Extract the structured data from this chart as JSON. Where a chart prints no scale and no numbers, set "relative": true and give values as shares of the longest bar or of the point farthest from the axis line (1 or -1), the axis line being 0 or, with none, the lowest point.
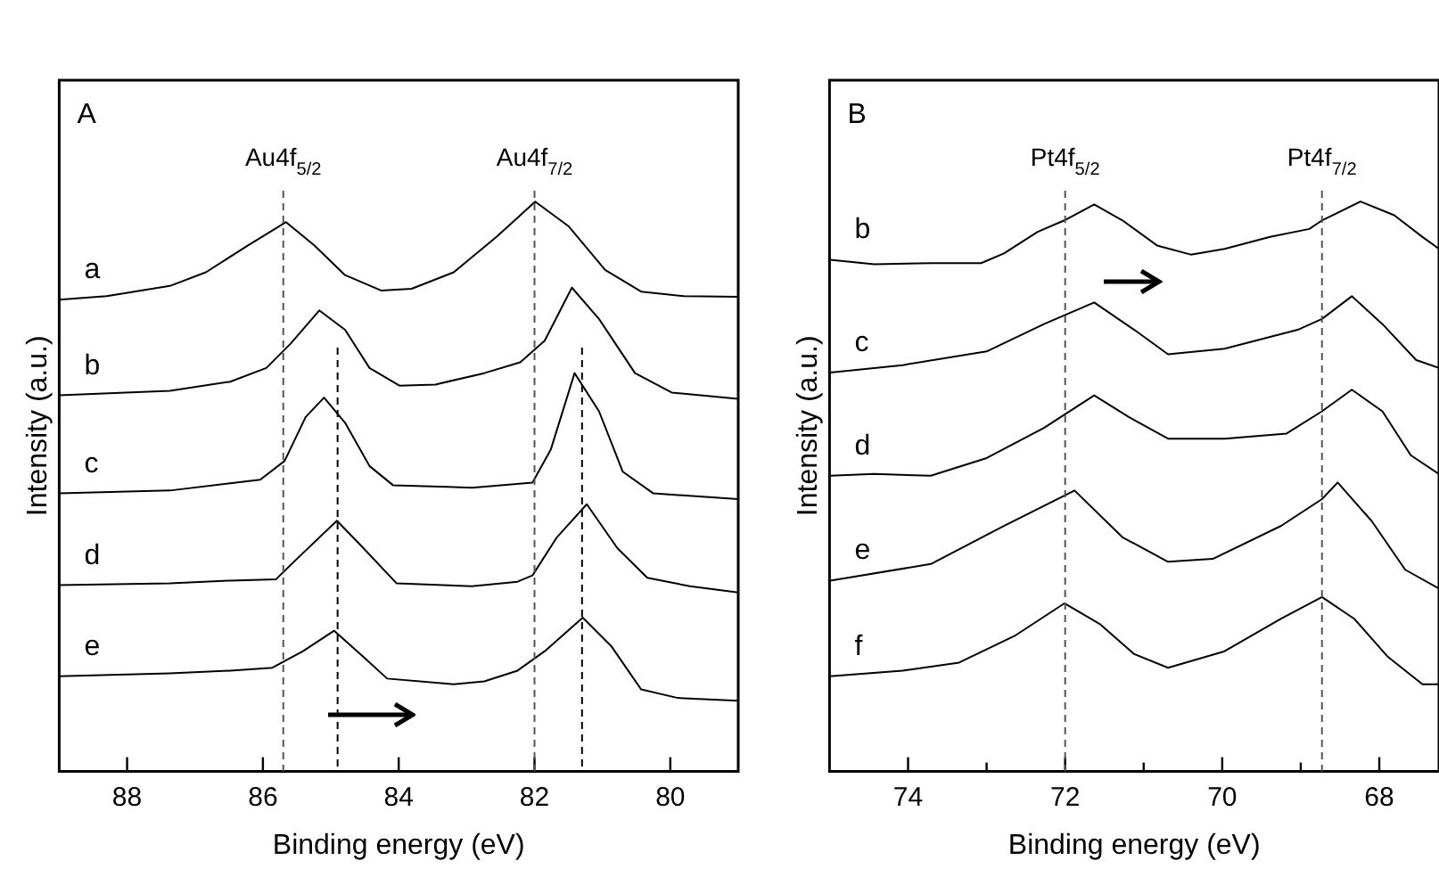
{
  "chart_data": [
    {
      "type": "line",
      "relative": true,
      "xlabel": "Binding energy (eV)",
      "ylabel": "Intensity (a.u.)",
      "xlim": [
        89,
        79
      ],
      "xticks": [
        88,
        86,
        84,
        82,
        80
      ],
      "legend": false,
      "grid": false,
      "marker": "none",
      "line_style": "solid",
      "annotations": [
        "A"
      ],
      "ref_lines": [
        {
          "axis": "x",
          "value": 85.7,
          "label": "Au4f$_{5/2}$",
          "line_style": "dashed",
          "color": "#555555"
        },
        {
          "axis": "x",
          "value": 84.9,
          "label": null,
          "line_style": "dashed",
          "color": "#000000"
        },
        {
          "axis": "x",
          "value": 82.0,
          "label": "Au4f$_{7/2}$",
          "line_style": "dashed",
          "color": "#555555"
        },
        {
          "axis": "x",
          "value": 81.3,
          "label": null,
          "line_style": "dashed",
          "color": "#000000"
        }
      ],
      "series": [
        {
          "name": "a",
          "color": "#000000",
          "x": [
            89,
            88.3,
            87.37,
            86.84,
            86.22,
            85.66,
            85.24,
            84.79,
            84.26,
            83.81,
            83.19,
            82.56,
            81.99,
            81.5,
            80.96,
            80.43,
            79.8,
            79.0
          ],
          "values": [
            0.828,
            0.834,
            0.852,
            0.876,
            0.923,
            0.964,
            0.923,
            0.871,
            0.844,
            0.847,
            0.876,
            0.938,
            1,
            0.957,
            0.88,
            0.842,
            0.834,
            0.833
          ]
        },
        {
          "name": "b",
          "color": "#000000",
          "x": [
            89,
            87.37,
            86.48,
            85.95,
            85.59,
            85.17,
            84.79,
            84.43,
            83.99,
            83.46,
            82.74,
            82.21,
            81.85,
            81.45,
            81.05,
            80.52,
            79.98,
            79.0
          ],
          "values": [
            0.66,
            0.668,
            0.684,
            0.708,
            0.751,
            0.809,
            0.775,
            0.708,
            0.677,
            0.679,
            0.699,
            0.718,
            0.756,
            0.849,
            0.794,
            0.699,
            0.665,
            0.654
          ]
        },
        {
          "name": "c",
          "color": "#000000",
          "x": [
            89,
            87.37,
            86.04,
            85.68,
            85.37,
            85.1,
            84.79,
            84.43,
            84.08,
            82.92,
            82.03,
            81.76,
            81.41,
            81.05,
            80.7,
            80.25,
            79.0
          ],
          "values": [
            0.488,
            0.493,
            0.512,
            0.545,
            0.622,
            0.656,
            0.612,
            0.536,
            0.502,
            0.498,
            0.507,
            0.565,
            0.699,
            0.632,
            0.526,
            0.488,
            0.478
          ]
        },
        {
          "name": "d",
          "color": "#000000",
          "x": [
            89,
            87.37,
            86.48,
            85.81,
            85.5,
            84.91,
            84.52,
            84.03,
            82.92,
            82.25,
            82.03,
            81.67,
            81.23,
            80.78,
            80.34,
            79.71,
            79.0
          ],
          "values": [
            0.327,
            0.33,
            0.335,
            0.337,
            0.373,
            0.44,
            0.392,
            0.33,
            0.325,
            0.333,
            0.344,
            0.411,
            0.469,
            0.392,
            0.34,
            0.325,
            0.314
          ]
        },
        {
          "name": "e",
          "color": "#000000",
          "x": [
            89,
            87.37,
            86.48,
            85.86,
            85.41,
            84.95,
            84.52,
            84.17,
            83.19,
            82.74,
            82.25,
            81.85,
            81.29,
            80.87,
            80.43,
            79.89,
            79.0
          ],
          "values": [
            0.167,
            0.172,
            0.177,
            0.182,
            0.211,
            0.247,
            0.201,
            0.163,
            0.153,
            0.158,
            0.177,
            0.211,
            0.27,
            0.22,
            0.144,
            0.129,
            0.124
          ]
        }
      ]
    },
    {
      "type": "line",
      "relative": true,
      "xlabel": "Binding energy (eV)",
      "ylabel": "Intensity (a.u.)",
      "xlim": [
        75,
        67.24
      ],
      "xticks": [
        74,
        {
          "value": 73,
          "label": null
        },
        72,
        {
          "value": 71,
          "label": null
        },
        70,
        {
          "value": 69,
          "label": null
        },
        68
      ],
      "legend": false,
      "grid": false,
      "marker": "none",
      "line_style": "solid",
      "annotations": [
        "B"
      ],
      "ref_lines": [
        {
          "axis": "x",
          "value": 72.0,
          "label": "Pt4f$_{5/2}$",
          "line_style": "dashed",
          "color": "#555555"
        },
        {
          "axis": "x",
          "value": 68.73,
          "label": "Pt4f$_{7/2}$",
          "line_style": "dashed",
          "color": "#555555"
        }
      ],
      "series": [
        {
          "name": "b",
          "color": "#000000",
          "x": [
            74.99,
            74.43,
            73.71,
            73.07,
            72.78,
            72.35,
            72.01,
            71.63,
            71.27,
            70.83,
            70.4,
            69.97,
            69.39,
            68.89,
            68.73,
            68.24,
            67.81,
            67.45,
            67.24
          ],
          "values": [
            0.898,
            0.89,
            0.892,
            0.892,
            0.909,
            0.947,
            0.967,
            0.995,
            0.967,
            0.923,
            0.907,
            0.917,
            0.938,
            0.952,
            0.967,
            1,
            0.976,
            0.938,
            0.917
          ]
        },
        {
          "name": "c",
          "color": "#000000",
          "x": [
            74.99,
            74.07,
            73.0,
            72.27,
            71.63,
            71.12,
            70.69,
            69.97,
            69.04,
            68.73,
            68.35,
            67.96,
            67.53,
            67.24
          ],
          "values": [
            0.7,
            0.713,
            0.737,
            0.785,
            0.823,
            0.775,
            0.732,
            0.742,
            0.775,
            0.794,
            0.834,
            0.785,
            0.722,
            0.708
          ]
        },
        {
          "name": "d",
          "color": "#000000",
          "x": [
            74.99,
            74.43,
            73.71,
            73.0,
            72.27,
            71.63,
            71.19,
            70.69,
            69.97,
            69.18,
            68.73,
            68.35,
            67.96,
            67.6,
            67.24
          ],
          "values": [
            0.519,
            0.522,
            0.519,
            0.55,
            0.603,
            0.66,
            0.622,
            0.584,
            0.584,
            0.593,
            0.632,
            0.67,
            0.632,
            0.555,
            0.522
          ]
        },
        {
          "name": "e",
          "color": "#000000",
          "x": [
            74.99,
            73.71,
            72.78,
            71.88,
            71.27,
            70.69,
            70.12,
            69.25,
            68.73,
            68.53,
            68.1,
            67.67,
            67.24
          ],
          "values": [
            0.335,
            0.364,
            0.431,
            0.493,
            0.411,
            0.368,
            0.373,
            0.431,
            0.478,
            0.507,
            0.44,
            0.354,
            0.321
          ]
        },
        {
          "name": "f",
          "color": "#000000",
          "x": [
            74.99,
            74.07,
            73.35,
            72.63,
            72.01,
            71.55,
            71.12,
            70.69,
            69.97,
            69.25,
            68.73,
            68.32,
            67.89,
            67.45,
            67.24
          ],
          "values": [
            0.167,
            0.177,
            0.191,
            0.239,
            0.295,
            0.258,
            0.206,
            0.182,
            0.211,
            0.268,
            0.306,
            0.268,
            0.201,
            0.153,
            0.153
          ]
        }
      ]
    }
  ]
}
